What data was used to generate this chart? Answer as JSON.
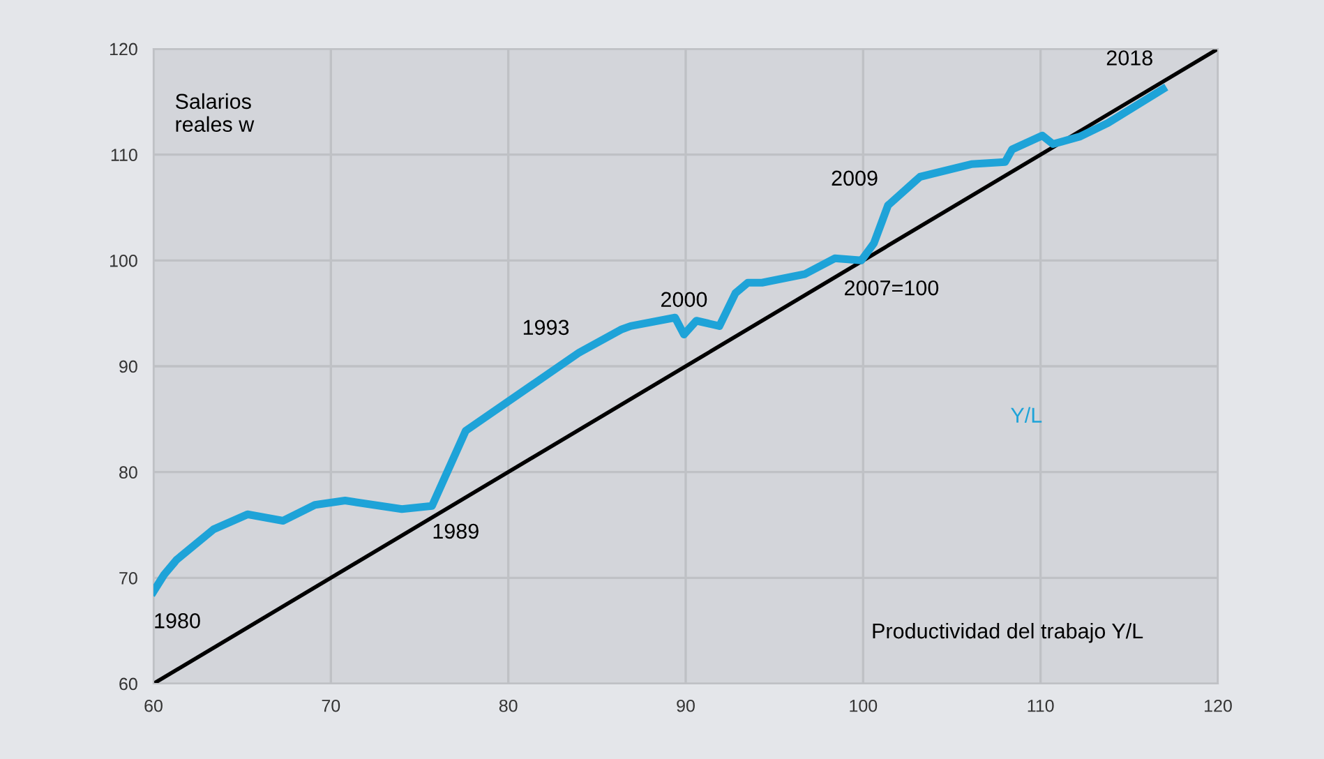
{
  "chart_data": {
    "type": "line",
    "xlabel": "Productividad del trabajo Y/L",
    "ylabel": "Salarios\nreales w",
    "xlim": [
      60,
      120
    ],
    "ylim": [
      60,
      120
    ],
    "xticks": [
      60,
      70,
      80,
      90,
      100,
      110,
      120
    ],
    "yticks": [
      60,
      70,
      80,
      90,
      100,
      110,
      120
    ],
    "grid": true,
    "legend": false,
    "series": [
      {
        "name": "Y/L",
        "color": "#1ea3d8",
        "x": [
          60.0,
          60.6,
          61.3,
          63.4,
          65.3,
          67.3,
          69.1,
          70.8,
          74.0,
          75.7,
          77.6,
          84.0,
          86.4,
          86.9,
          89.4,
          89.9,
          90.6,
          91.9,
          92.8,
          93.5,
          94.3,
          96.7,
          98.4,
          99.9,
          100.6,
          101.4,
          103.2,
          106.1,
          108.0,
          108.4,
          110.1,
          110.7,
          112.2,
          113.8,
          116.9
        ],
        "values": [
          68.7,
          70.3,
          71.7,
          74.6,
          76.0,
          75.4,
          76.9,
          77.3,
          76.5,
          76.8,
          83.9,
          91.3,
          93.5,
          93.8,
          94.6,
          93.0,
          94.3,
          93.8,
          96.9,
          97.9,
          97.9,
          98.7,
          100.2,
          100.0,
          101.6,
          105.2,
          107.9,
          109.1,
          109.3,
          110.5,
          111.8,
          111.0,
          111.7,
          113.0,
          116.2
        ]
      },
      {
        "color": "#000000",
        "x": [
          60,
          120
        ],
        "values": [
          60,
          120
        ]
      }
    ],
    "annotations": [
      {
        "text": "1980",
        "x": 60.0,
        "y": 68.7
      },
      {
        "text": "1989",
        "x": 75.7,
        "y": 76.8
      },
      {
        "text": "1993",
        "x": 84.0,
        "y": 91.3
      },
      {
        "text": "2000",
        "x": 89.9,
        "y": 93.0
      },
      {
        "text": "2007=100",
        "x": 100,
        "y": 100
      },
      {
        "text": "2009",
        "x": 101.4,
        "y": 105.2
      },
      {
        "text": "2018",
        "x": 116.9,
        "y": 116.2
      }
    ]
  }
}
